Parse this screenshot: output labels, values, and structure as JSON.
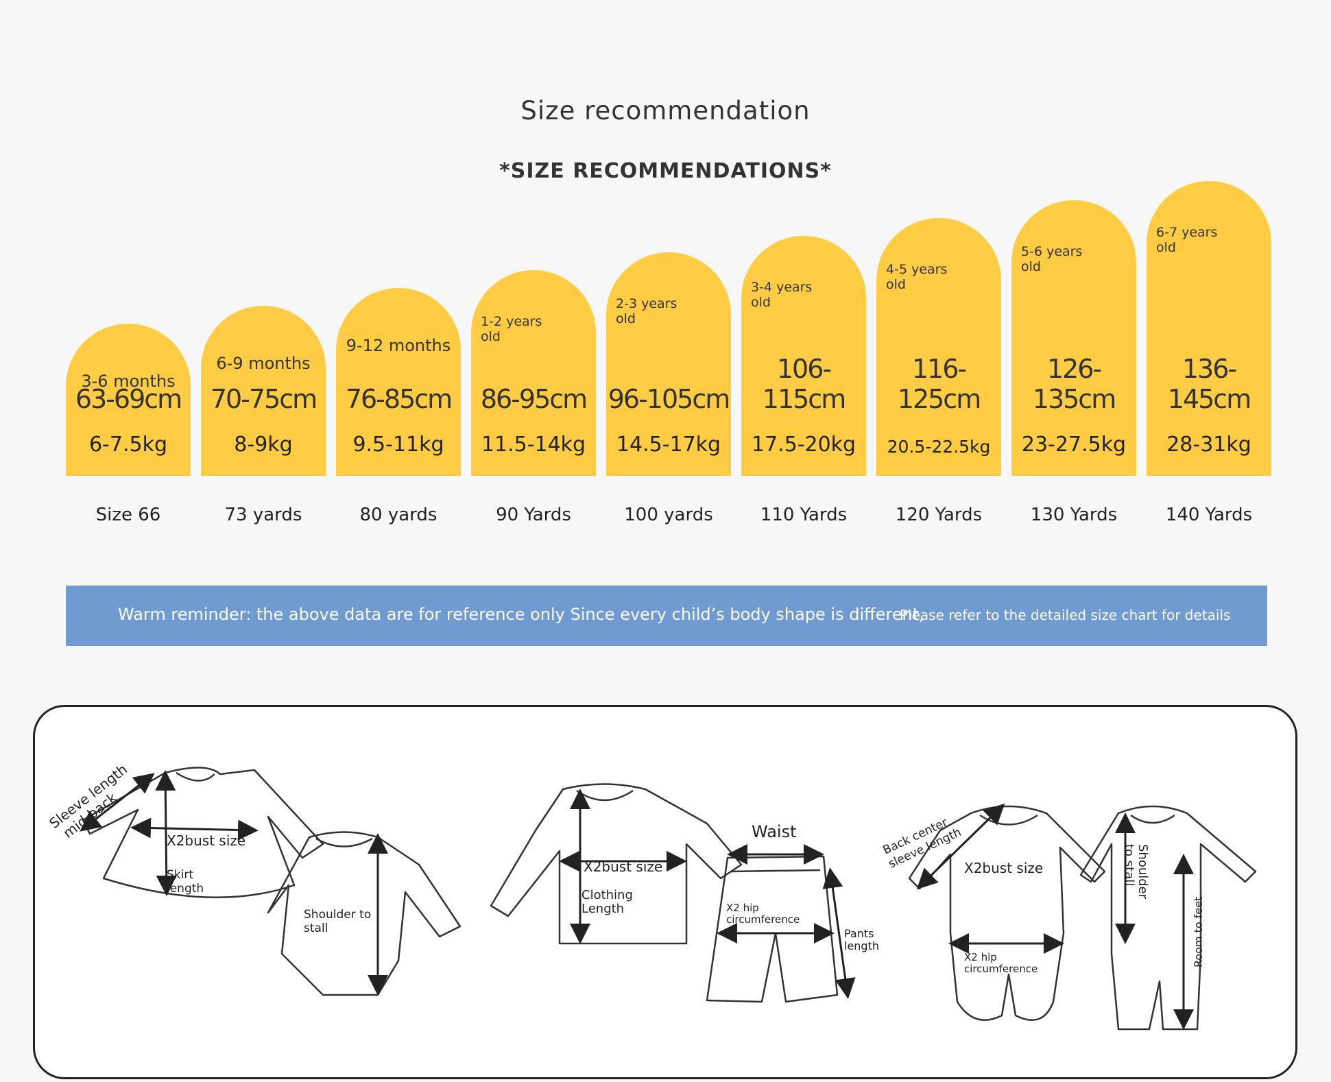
{
  "header": {
    "title": "Size recommendation",
    "subtitle": "*SIZE RECOMMENDATIONS*"
  },
  "chart_data": {
    "type": "table",
    "columns": [
      "age",
      "height",
      "weight",
      "size"
    ],
    "rows": [
      {
        "age": "3-6 months",
        "height": "63-69cm",
        "weight": "6-7.5kg",
        "size": "Size 66"
      },
      {
        "age": "6-9 months",
        "height": "70-75cm",
        "weight": "8-9kg",
        "size": "73 yards"
      },
      {
        "age": "9-12 months",
        "height": "76-85cm",
        "weight": "9.5-11kg",
        "size": "80 yards"
      },
      {
        "age": "1-2 years old",
        "height": "86-95cm",
        "weight": "11.5-14kg",
        "size": "90 Yards"
      },
      {
        "age": "2-3 years old",
        "height": "96-105cm",
        "weight": "14.5-17kg",
        "size": "100 yards"
      },
      {
        "age": "3-4 years old",
        "height": "106-115cm",
        "weight": "17.5-20kg",
        "size": "110 Yards"
      },
      {
        "age": "4-5 years old",
        "height": "116-125cm",
        "weight": "20.5-22.5kg",
        "size": "120 Yards"
      },
      {
        "age": "5-6 years old",
        "height": "126-135cm",
        "weight": "23-27.5kg",
        "size": "130 Yards"
      },
      {
        "age": "6-7 years old",
        "height": "136-145cm",
        "weight": "28-31kg",
        "size": "140 Yards"
      }
    ]
  },
  "reminder": {
    "text1": "Warm reminder: the above data are for reference only Since every child’s body shape is different,",
    "text2": "Please refer to the detailed size chart for details"
  },
  "diagram": {
    "labels": {
      "sleeve_length": "Sleeve length",
      "mid_back": "mid-back",
      "bust1": "X2bust size",
      "skirt1": "Skirt",
      "skirt2": "length",
      "shoulder_stall1": "Shoulder to",
      "shoulder_stall2": "stall",
      "bust2": "X2bust size",
      "clothing1": "Clothing",
      "clothing2": "Length",
      "waist": "Waist",
      "hip1": "X2 hip",
      "hip1b": "circumference",
      "pants1": "Pants",
      "pants2": "length",
      "back_center1": "Back center",
      "back_center2": "sleeve length",
      "bust3": "X2bust size",
      "hip2": "X2 hip",
      "hip2b": "circumference",
      "shoulder_stall3": "Shoulder",
      "shoulder_stall4": "to stall",
      "room_to_feet": "Room to feet"
    }
  },
  "colors": {
    "arch": "#ffcc44",
    "reminder_bg": "#6f9bd1",
    "page_bg": "#f7f7f7"
  }
}
